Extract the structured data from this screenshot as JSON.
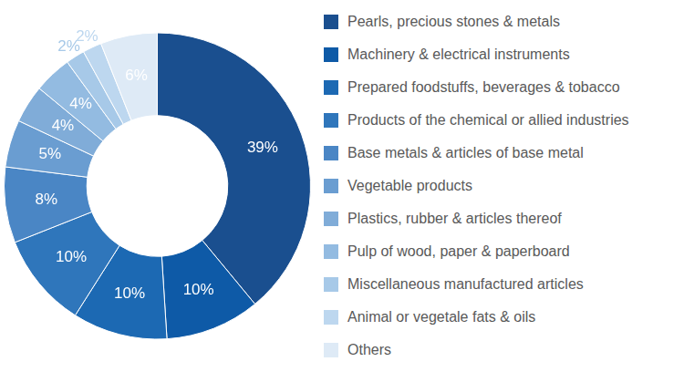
{
  "chart_data": {
    "type": "doughnut",
    "categories": [
      "Pearls, precious stones & metals",
      "Machinery & electrical instruments",
      "Prepared foodstuffs, beverages & tobacco",
      "Products of the chemical or allied industries",
      "Base metals & articles of base metal",
      "Vegetable products",
      "Plastics, rubber & articles thereof",
      "Pulp of wood, paper & paperboard",
      "Miscellaneous manufactured articles",
      "Animal or vegetale fats & oils",
      "Others"
    ],
    "values": [
      39,
      10,
      10,
      10,
      8,
      5,
      4,
      4,
      2,
      2,
      6
    ],
    "value_labels": [
      "39%",
      "10%",
      "10%",
      "10%",
      "8%",
      "5%",
      "4%",
      "4%",
      "2%",
      "2%",
      "6%"
    ],
    "colors": [
      "#1a4f8f",
      "#0e5aa7",
      "#1c69b3",
      "#2f76bb",
      "#4a86c5",
      "#6a9dd1",
      "#80acd8",
      "#93bbe1",
      "#a7c9e8",
      "#bdd7ef",
      "#deeaf6"
    ],
    "data_labels": true,
    "legend": "right"
  }
}
